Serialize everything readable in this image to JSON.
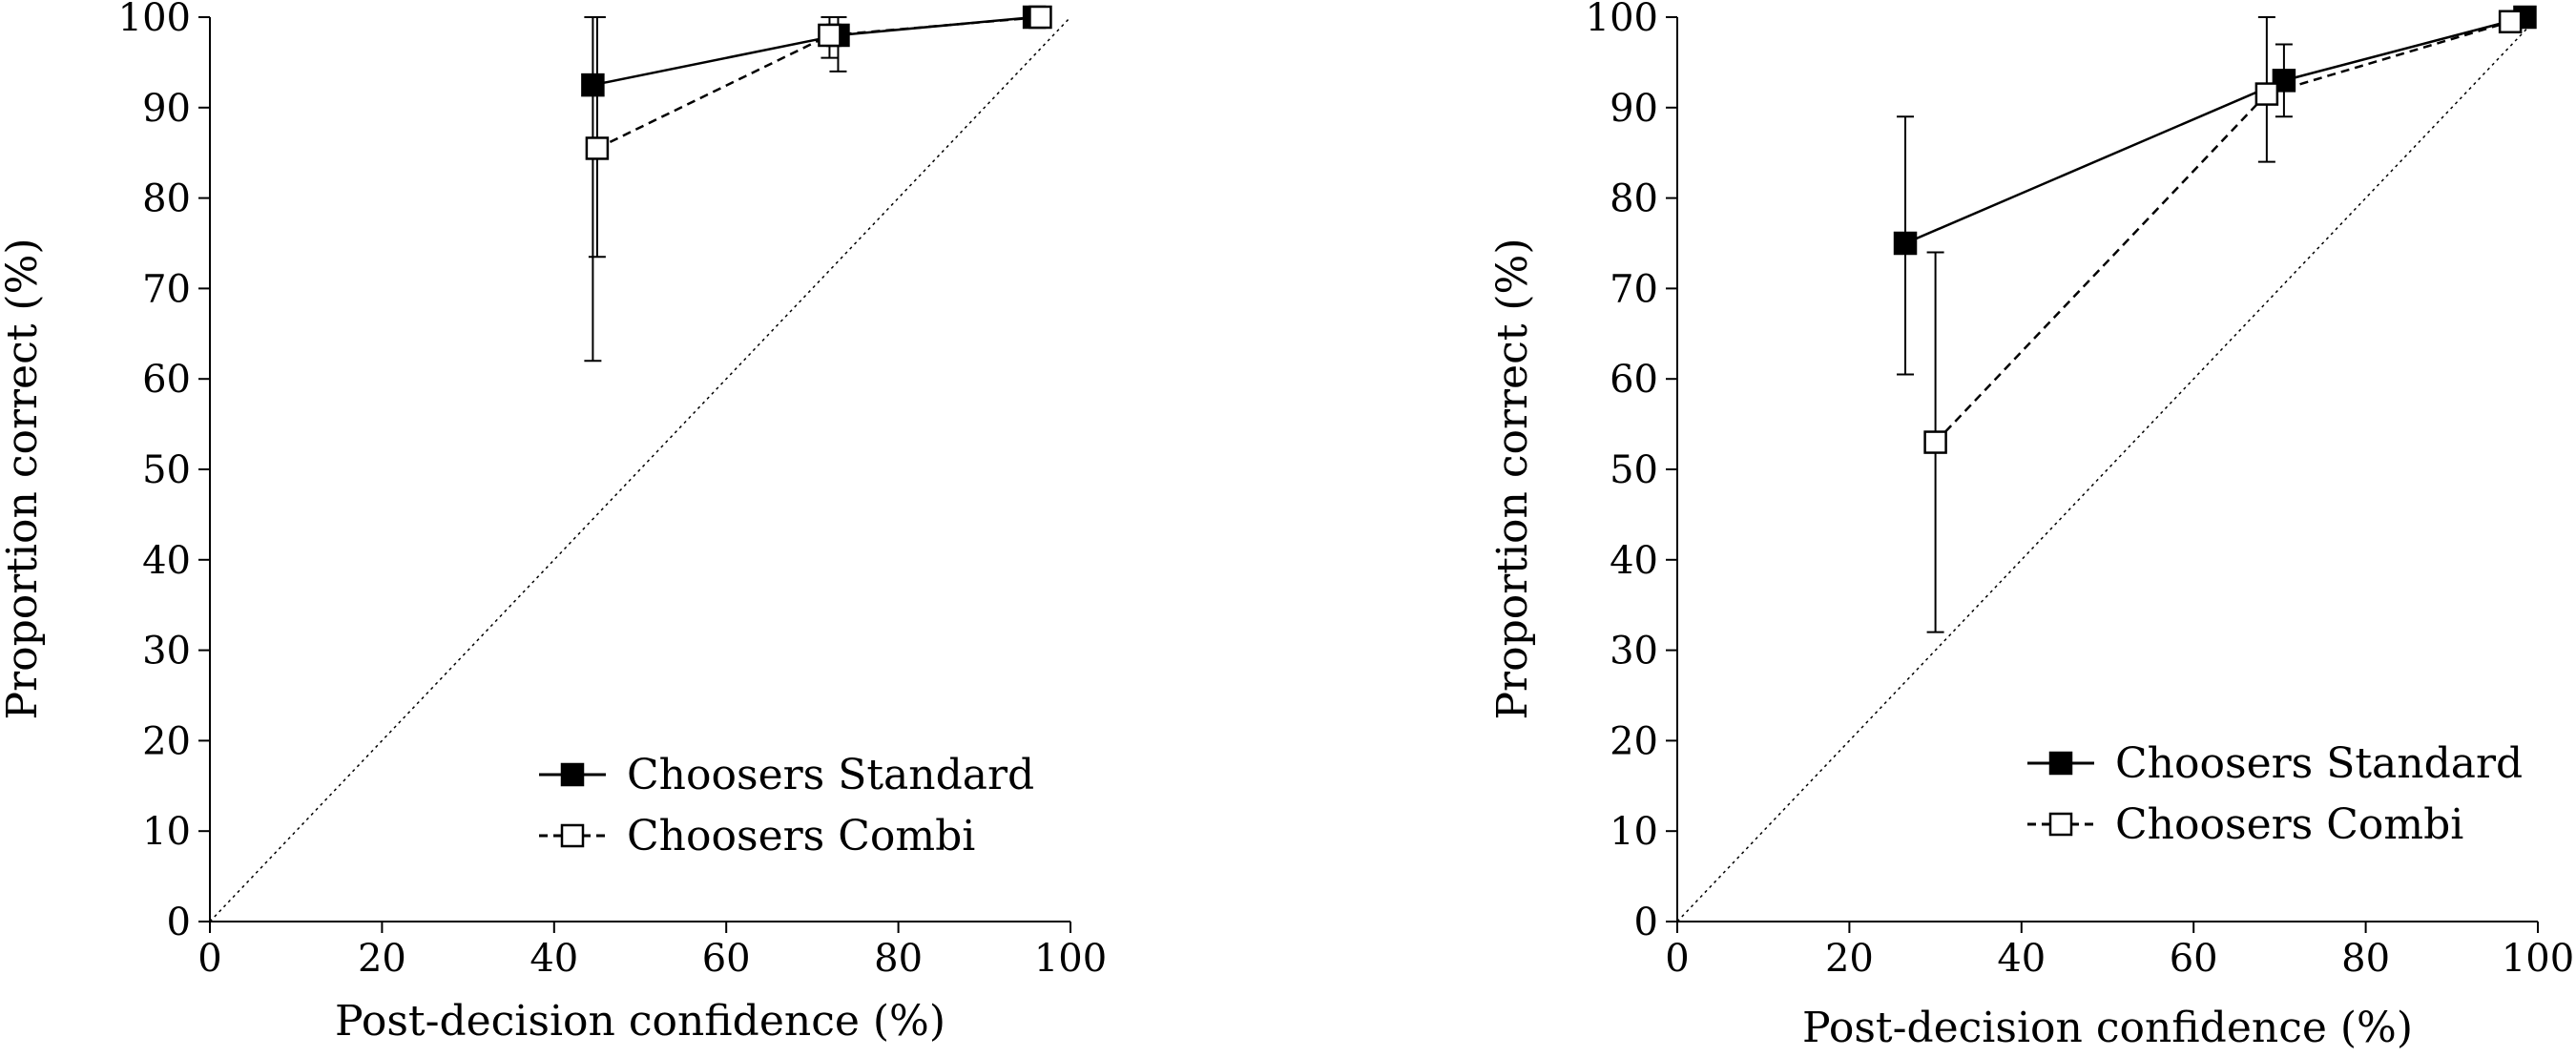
{
  "chart_data": [
    {
      "type": "line",
      "xlabel": "Post-decision confidence (%)",
      "ylabel": "Proportion correct (%)",
      "xlim": [
        0,
        100
      ],
      "ylim": [
        0,
        100
      ],
      "xticks": [
        "0",
        "20",
        "40",
        "60",
        "80",
        "100"
      ],
      "yticks": [
        "0",
        "10",
        "20",
        "30",
        "40",
        "50",
        "60",
        "70",
        "80",
        "90",
        "100"
      ],
      "reference_line": "identity (dotted)",
      "legend_position": "lower-right",
      "series": [
        {
          "name": "Choosers Standard",
          "marker": "filled-square",
          "line_style": "solid",
          "points": [
            {
              "x": 44.5,
              "y": 92.5,
              "err_low": 62.0,
              "err_high": 100
            },
            {
              "x": 73.0,
              "y": 98.0,
              "err_low": 94.0,
              "err_high": 100
            },
            {
              "x": 95.8,
              "y": 100,
              "err_low": 100,
              "err_high": 100
            }
          ]
        },
        {
          "name": "Choosers Combi",
          "marker": "open-square",
          "line_style": "dashed",
          "points": [
            {
              "x": 45.0,
              "y": 85.5,
              "err_low": 73.5,
              "err_high": 100
            },
            {
              "x": 72.0,
              "y": 98.0,
              "err_low": 95.5,
              "err_high": 100
            },
            {
              "x": 96.5,
              "y": 100,
              "err_low": 100,
              "err_high": 100
            }
          ]
        }
      ]
    },
    {
      "type": "line",
      "xlabel": "Post-decision confidence (%)",
      "ylabel": "Proportion correct (%)",
      "xlim": [
        0,
        100
      ],
      "ylim": [
        0,
        100
      ],
      "xticks": [
        "0",
        "20",
        "40",
        "60",
        "80",
        "100"
      ],
      "yticks": [
        "0",
        "10",
        "20",
        "30",
        "40",
        "50",
        "60",
        "70",
        "80",
        "90",
        "100"
      ],
      "reference_line": "identity (dotted)",
      "legend_position": "lower-right",
      "series": [
        {
          "name": "Choosers Standard",
          "marker": "filled-square",
          "line_style": "solid",
          "points": [
            {
              "x": 26.5,
              "y": 75.0,
              "err_low": 60.5,
              "err_high": 89.0
            },
            {
              "x": 70.5,
              "y": 93.0,
              "err_low": 89.0,
              "err_high": 97.0
            },
            {
              "x": 98.5,
              "y": 100,
              "err_low": 100,
              "err_high": 100
            }
          ]
        },
        {
          "name": "Choosers Combi",
          "marker": "open-square",
          "line_style": "dashed",
          "points": [
            {
              "x": 30.0,
              "y": 53.0,
              "err_low": 32.0,
              "err_high": 74.0
            },
            {
              "x": 68.5,
              "y": 91.5,
              "err_low": 84.0,
              "err_high": 100
            },
            {
              "x": 96.8,
              "y": 99.5,
              "err_low": 99.5,
              "err_high": 99.5
            }
          ]
        }
      ]
    }
  ]
}
